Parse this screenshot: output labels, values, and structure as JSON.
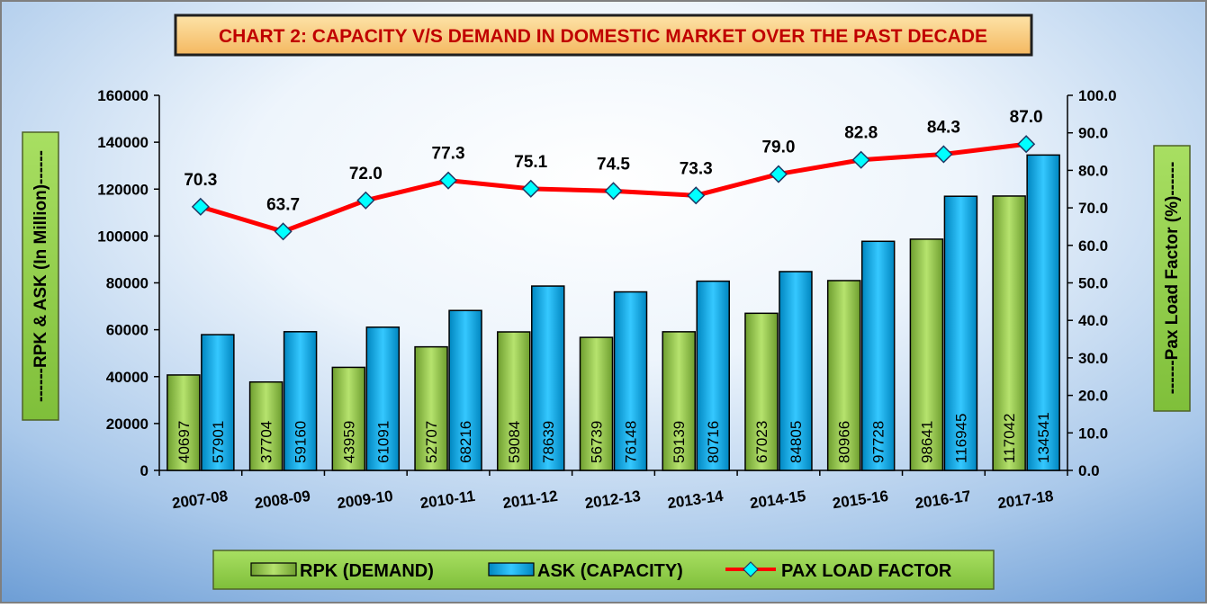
{
  "chart_data": {
    "type": "bar",
    "title": "CHART 2: CAPACITY V/S DEMAND IN DOMESTIC MARKET OVER THE PAST DECADE",
    "ylabel": "------RPK & ASK (In Million)------",
    "y2label": "------Pax Load Factor (%)------",
    "categories": [
      "2007-08",
      "2008-09",
      "2009-10",
      "2010-11",
      "2011-12",
      "2012-13",
      "2013-14",
      "2014-15",
      "2015-16",
      "2016-17",
      "2017-18"
    ],
    "ylim": [
      0,
      160000
    ],
    "y2lim": [
      0,
      100
    ],
    "yticks": [
      "0",
      "20000",
      "40000",
      "60000",
      "80000",
      "100000",
      "120000",
      "140000",
      "160000"
    ],
    "y2ticks": [
      "0.0",
      "10.0",
      "20.0",
      "30.0",
      "40.0",
      "50.0",
      "60.0",
      "70.0",
      "80.0",
      "90.0",
      "100.0"
    ],
    "series": [
      {
        "name": "RPK (DEMAND)",
        "type": "bar",
        "axis": "left",
        "color": "#92D050",
        "values": [
          40697,
          37704,
          43959,
          52707,
          59084,
          56739,
          59139,
          67023,
          80966,
          98641,
          117042
        ]
      },
      {
        "name": "ASK (CAPACITY)",
        "type": "bar",
        "axis": "left",
        "color": "#00B0F0",
        "values": [
          57901,
          59160,
          61091,
          68216,
          78639,
          76148,
          80716,
          84805,
          97728,
          116945,
          134541
        ]
      },
      {
        "name": "PAX LOAD FACTOR",
        "type": "line",
        "axis": "right",
        "color": "#FF0000",
        "marker_color": "#00FFFF",
        "values": [
          70.3,
          63.7,
          72.0,
          77.3,
          75.1,
          74.5,
          73.3,
          79.0,
          82.8,
          84.3,
          87.0
        ],
        "labels": [
          "70.3",
          "63.7",
          "72.0",
          "77.3",
          "75.1",
          "74.5",
          "73.3",
          "79.0",
          "82.8",
          "84.3",
          "87.0"
        ]
      }
    ],
    "grid": false,
    "legend": "bottom"
  }
}
